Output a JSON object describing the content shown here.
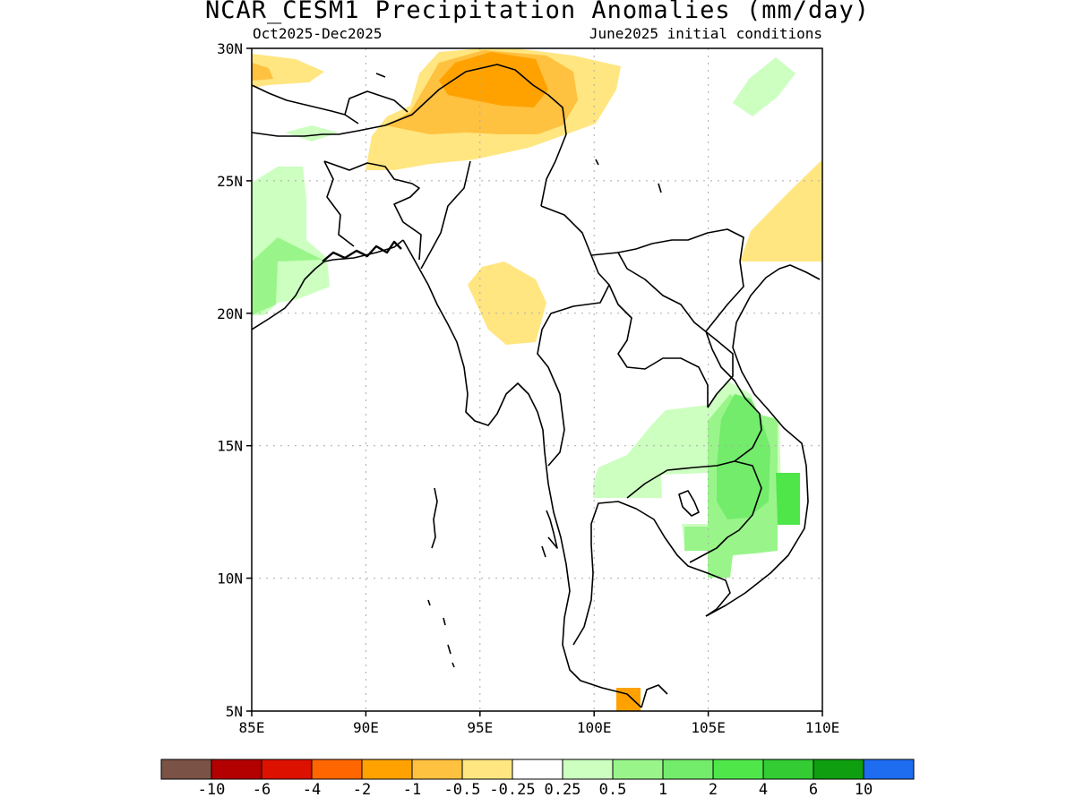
{
  "title": "NCAR_CESM1 Precipitation Anomalies (mm/day)",
  "subtitle_left": "Oct2025-Dec2025",
  "subtitle_right": "June2025 initial conditions",
  "map": {
    "lon_range": [
      85,
      110
    ],
    "lat_range": [
      5,
      30
    ],
    "x_ticks": [
      "85E",
      "90E",
      "95E",
      "100E",
      "105E",
      "110E"
    ],
    "y_ticks": [
      "5N",
      "10N",
      "15N",
      "20N",
      "25N",
      "30N"
    ],
    "grid": true
  },
  "colorbar": {
    "colors": [
      "#7a5246",
      "#b30000",
      "#dd1100",
      "#ff6600",
      "#ffa200",
      "#ffc140",
      "#ffe680",
      "#ffffff",
      "#ccffc0",
      "#99f58a",
      "#73eb6b",
      "#4fe64a",
      "#33cc33",
      "#0f9e0f",
      "#1e6cf0"
    ],
    "labels": [
      "-10",
      "-6",
      "-4",
      "-2",
      "-1",
      "-0.5",
      "-0.25",
      "0.25",
      "0.5",
      "1",
      "2",
      "4",
      "6",
      "10"
    ]
  },
  "chart_data": {
    "type": "heatmap",
    "title": "NCAR_CESM1 Precipitation Anomalies (mm/day)",
    "variable": "Precipitation Anomalies",
    "units": "mm/day",
    "period": "Oct2025-Dec2025",
    "initialization": "June2025 initial conditions",
    "lon_range": [
      85,
      110
    ],
    "lat_range": [
      5,
      30
    ],
    "levels": [
      -10,
      -6,
      -4,
      -2,
      -1,
      -0.5,
      -0.25,
      0.25,
      0.5,
      1,
      2,
      4,
      6,
      10
    ],
    "regions": [
      {
        "area": "Tibet / Himalaya, 93-99E 27-30N",
        "category": "-2 to -1"
      },
      {
        "area": "Tibet / Bhutan / Assam, 90-102E 26-30N",
        "category": "-1 to -0.5"
      },
      {
        "area": "Nepal, 85-88E 29-30N",
        "category": "-1 to -0.5"
      },
      {
        "area": "Central Myanmar, 95-98E 19-21N",
        "category": "-0.5 to -0.25"
      },
      {
        "area": "Southern China / Gulf of Tonkin, 107-110E 22-26N",
        "category": "-0.5 to -0.25"
      },
      {
        "area": "Malay Peninsula, 101-102E 5-6N",
        "category": "-1 to -0.5"
      },
      {
        "area": "Eastern India / Bangladesh coast, 85-88E 20-25N",
        "category": "0.25 to 1"
      },
      {
        "area": "Sichuan, 106-109E 28-30N",
        "category": "0.25 to 0.5"
      },
      {
        "area": "Thailand / Cambodia / Laos, 100-108E 13-17N",
        "category": "0.25 to 0.5"
      },
      {
        "area": "Cambodia / Vietnam, 104-109E 10-17N",
        "category": "0.5 to 2"
      }
    ]
  }
}
